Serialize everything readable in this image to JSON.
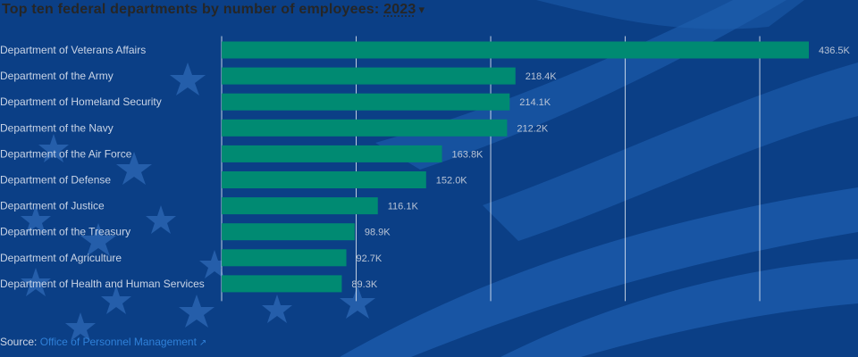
{
  "header": {
    "title": "Top ten federal departments by number of employees",
    "year": "2023"
  },
  "colors": {
    "background": "#0b3f86",
    "stripe": "#1e5fb0",
    "star": "#3b79c8",
    "bar": "#008a72",
    "grid": "#ffffff"
  },
  "chart_data": {
    "type": "bar",
    "orientation": "horizontal",
    "categories": [
      "Department of Veterans Affairs",
      "Department of the Army",
      "Department of Homeland Security",
      "Department of the Navy",
      "Department of the Air Force",
      "Department of Defense",
      "Department of Justice",
      "Department of the Treasury",
      "Department of Agriculture",
      "Department of Health and Human Services"
    ],
    "values": [
      436500,
      218400,
      214100,
      212200,
      163800,
      152000,
      116100,
      98900,
      92700,
      89300
    ],
    "value_labels": [
      "436.5K",
      "218.4K",
      "214.1K",
      "212.2K",
      "163.8K",
      "152.0K",
      "116.1K",
      "98.9K",
      "92.7K",
      "89.3K"
    ],
    "xlim": [
      0,
      436500
    ],
    "gridlines": [
      0,
      100000,
      200000,
      300000,
      400000
    ],
    "grid": true
  },
  "source": {
    "prefix": "Source:",
    "link_text": "Office of Personnel Management"
  }
}
